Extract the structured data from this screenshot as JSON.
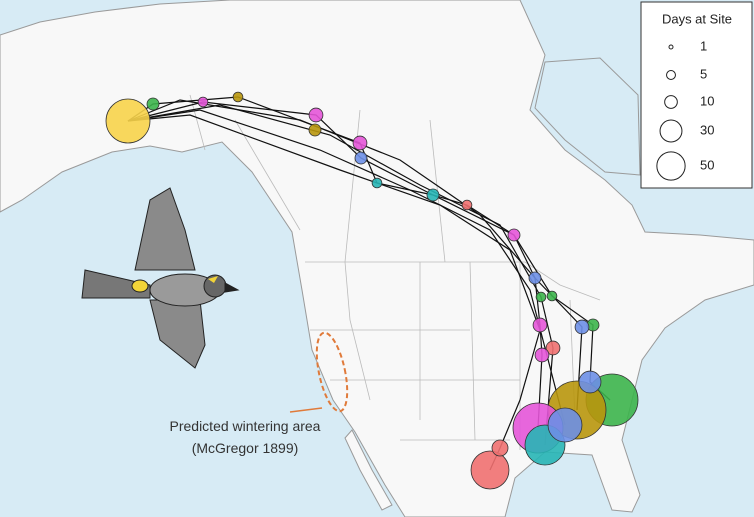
{
  "legend": {
    "title": "Days at Site",
    "entries": [
      1,
      5,
      10,
      30,
      50
    ]
  },
  "annotation": {
    "lines": [
      "Predicted wintering area",
      "(McGregor 1899)"
    ]
  },
  "sites": [
    {
      "color": "#f7d34a",
      "days": 121
    },
    {
      "color": "#3cb44b",
      "days": 169
    },
    {
      "color": "#b8960c",
      "days": 210
    },
    {
      "color": "#e455d8",
      "days": 156
    },
    {
      "color": "#27b5b5",
      "days": 100
    },
    {
      "color": "#6d8fe6",
      "days": 72
    },
    {
      "color": "#f07070",
      "days": 90
    },
    {
      "color": "#6d8fe6",
      "days": 30
    },
    {
      "color": "#f07070",
      "days": 16
    },
    {
      "color": "#e455d8",
      "days": 12
    },
    {
      "color": "#f07070",
      "days": 12
    },
    {
      "color": "#e455d8",
      "days": 12
    },
    {
      "color": "#3cb44b",
      "days": 9
    },
    {
      "color": "#6d8fe6",
      "days": 12
    },
    {
      "color": "#6d8fe6",
      "days": 9
    },
    {
      "color": "#3cb44b",
      "days": 6
    },
    {
      "color": "#27b5b5",
      "days": 9
    },
    {
      "color": "#6d8fe6",
      "days": 9
    },
    {
      "color": "#e455d8",
      "days": 12
    },
    {
      "color": "#e455d8",
      "days": 12
    },
    {
      "color": "#e455d8",
      "days": 9
    },
    {
      "color": "#b8960c",
      "days": 6
    },
    {
      "color": "#3cb44b",
      "days": 9
    },
    {
      "color": "#e455d8",
      "days": 6
    },
    {
      "color": "#27b5b5",
      "days": 6
    },
    {
      "color": "#3cb44b",
      "days": 6
    },
    {
      "color": "#f07070",
      "days": 6
    },
    {
      "color": "#b8960c",
      "days": 9
    }
  ]
}
